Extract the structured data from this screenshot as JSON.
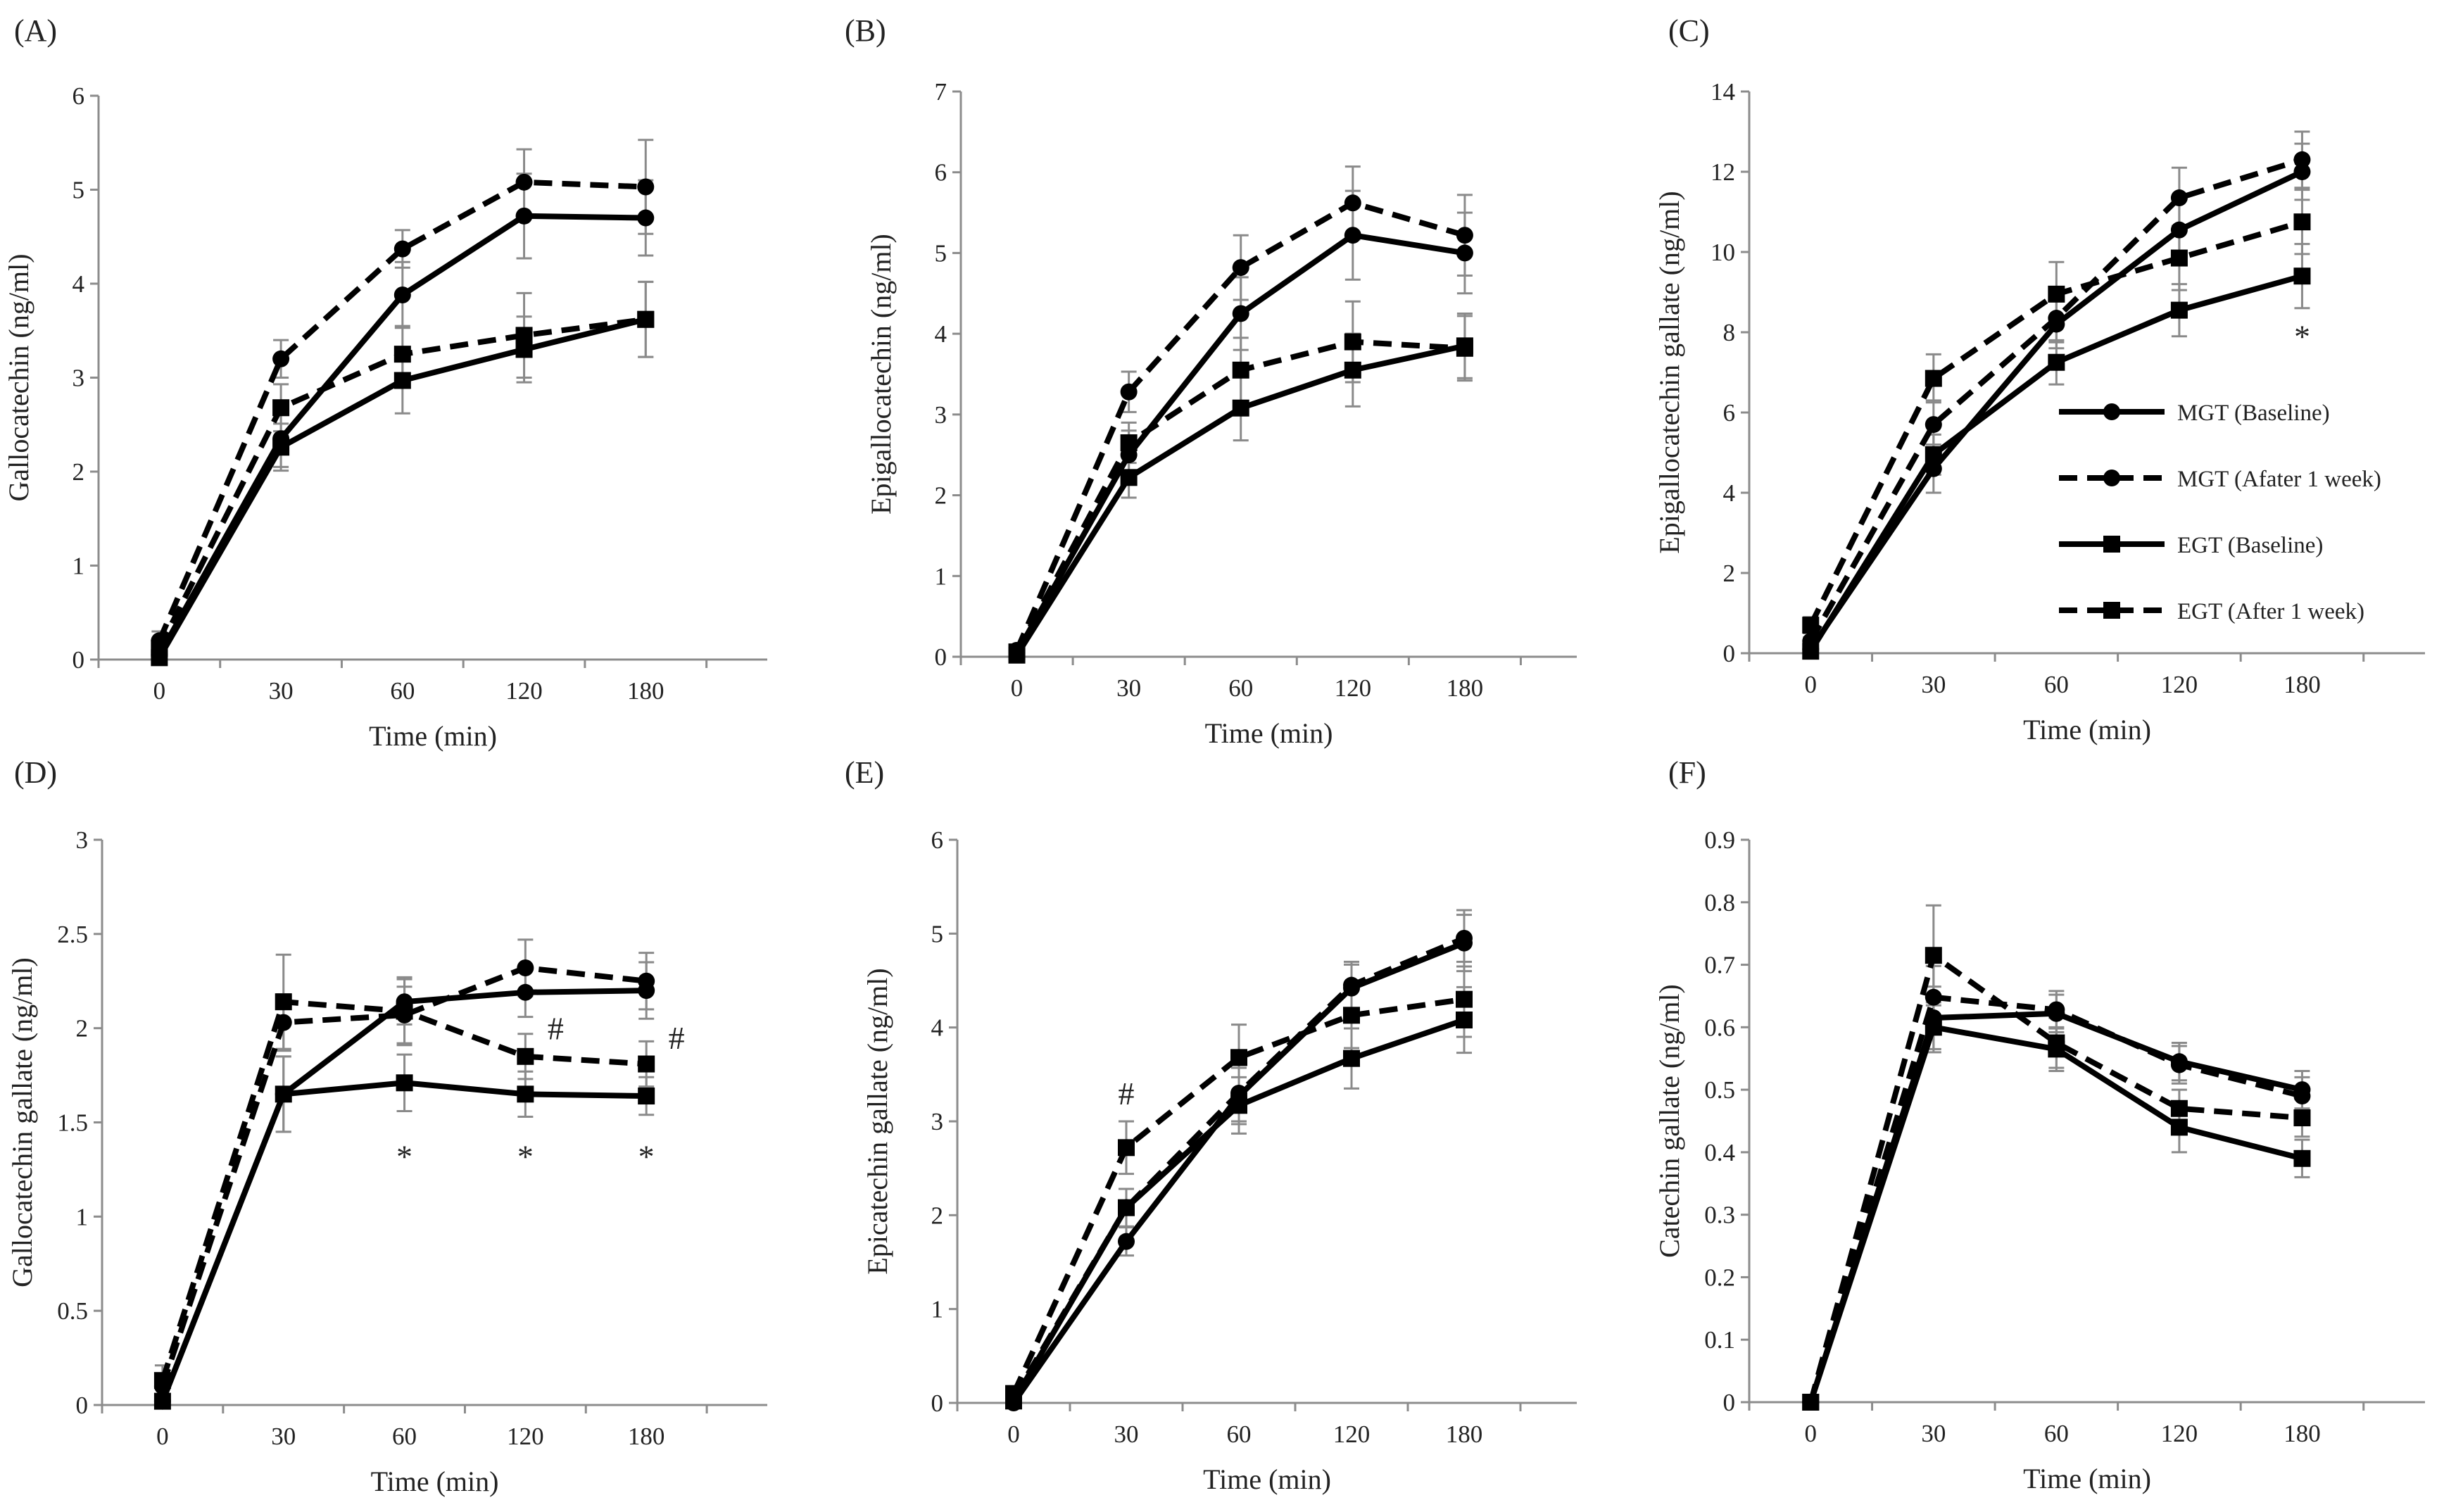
{
  "chart_data": [
    {
      "panel": "(A)",
      "type": "line",
      "xlabel": "Time (min)",
      "ylabel": "Gallocatechin (ng/ml)",
      "ylim": [
        0,
        6
      ],
      "yticks": [
        "0",
        "1",
        "2",
        "3",
        "4",
        "5",
        "6"
      ],
      "categories": [
        "0",
        "30",
        "60",
        "120",
        "180"
      ],
      "series": [
        {
          "key": "mgt_base",
          "values": [
            0.05,
            2.35,
            3.88,
            4.72,
            4.7
          ],
          "errors": [
            0.05,
            0.3,
            0.35,
            0.45,
            0.4
          ]
        },
        {
          "key": "mgt_week",
          "values": [
            0.2,
            3.2,
            4.37,
            5.08,
            5.03
          ],
          "errors": [
            0.1,
            0.2,
            0.2,
            0.35,
            0.5
          ]
        },
        {
          "key": "egt_base",
          "values": [
            0.02,
            2.26,
            2.97,
            3.3,
            3.62
          ],
          "errors": [
            0.02,
            0.25,
            0.35,
            0.35,
            0.4
          ]
        },
        {
          "key": "egt_week",
          "values": [
            0.12,
            2.68,
            3.25,
            3.45,
            3.62
          ],
          "errors": [
            0.05,
            0.25,
            0.3,
            0.45,
            0.4
          ]
        }
      ],
      "annotations": []
    },
    {
      "panel": "(B)",
      "type": "line",
      "xlabel": "Time (min)",
      "ylabel": "Epigallocatechin (ng/ml)",
      "ylim": [
        0,
        7
      ],
      "yticks": [
        "0",
        "1",
        "2",
        "3",
        "4",
        "5",
        "6",
        "7"
      ],
      "categories": [
        "0",
        "30",
        "60",
        "120",
        "180"
      ],
      "series": [
        {
          "key": "mgt_base",
          "values": [
            0.05,
            2.5,
            4.25,
            5.22,
            5.0
          ],
          "errors": [
            0.03,
            0.3,
            0.45,
            0.55,
            0.5
          ]
        },
        {
          "key": "mgt_week",
          "values": [
            0.08,
            3.28,
            4.82,
            5.62,
            5.22
          ],
          "errors": [
            0.05,
            0.25,
            0.4,
            0.45,
            0.5
          ]
        },
        {
          "key": "egt_base",
          "values": [
            0.02,
            2.22,
            3.08,
            3.55,
            3.85
          ],
          "errors": [
            0.02,
            0.25,
            0.4,
            0.45,
            0.4
          ]
        },
        {
          "key": "egt_week",
          "values": [
            0.06,
            2.65,
            3.55,
            3.9,
            3.82
          ],
          "errors": [
            0.03,
            0.25,
            0.4,
            0.5,
            0.4
          ]
        }
      ],
      "annotations": []
    },
    {
      "panel": "(C)",
      "type": "line",
      "xlabel": "Time (min)",
      "ylabel": "Epigallocatechin gallate (ng/ml)",
      "ylim": [
        0,
        14
      ],
      "yticks": [
        "0",
        "2",
        "4",
        "6",
        "8",
        "10",
        "12",
        "14"
      ],
      "categories": [
        "0",
        "30",
        "60",
        "120",
        "180"
      ],
      "series": [
        {
          "key": "mgt_base",
          "values": [
            0.1,
            4.6,
            8.2,
            10.55,
            12.0
          ],
          "errors": [
            0.05,
            0.6,
            0.6,
            0.75,
            0.7
          ]
        },
        {
          "key": "mgt_week",
          "values": [
            0.3,
            5.7,
            8.35,
            11.35,
            12.3
          ],
          "errors": [
            0.1,
            0.6,
            0.6,
            0.75,
            0.7
          ]
        },
        {
          "key": "egt_base",
          "values": [
            0.05,
            4.95,
            7.25,
            8.55,
            9.4
          ],
          "errors": [
            0.05,
            0.5,
            0.55,
            0.65,
            0.8
          ]
        },
        {
          "key": "egt_week",
          "values": [
            0.7,
            6.85,
            8.95,
            9.85,
            10.75
          ],
          "errors": [
            0.2,
            0.6,
            0.8,
            0.8,
            0.8
          ]
        }
      ],
      "annotations": [
        {
          "category": "180",
          "value": 7.9,
          "text": "*"
        }
      ]
    },
    {
      "panel": "(D)",
      "type": "line",
      "xlabel": "Time (min)",
      "ylabel": "Gallocatechin gallate (ng/ml)",
      "ylim": [
        0,
        3
      ],
      "yticks": [
        "0",
        "0.5",
        "1",
        "1.5",
        "2",
        "2.5",
        "3"
      ],
      "categories": [
        "0",
        "30",
        "60",
        "120",
        "180"
      ],
      "series": [
        {
          "key": "mgt_base",
          "values": [
            0.02,
            1.65,
            2.14,
            2.19,
            2.2
          ],
          "errors": [
            0.02,
            0.2,
            0.12,
            0.13,
            0.15
          ]
        },
        {
          "key": "mgt_week",
          "values": [
            0.1,
            2.03,
            2.07,
            2.32,
            2.25
          ],
          "errors": [
            0.05,
            0.15,
            0.15,
            0.15,
            0.15
          ]
        },
        {
          "key": "egt_base",
          "values": [
            0.02,
            1.65,
            1.71,
            1.65,
            1.64
          ],
          "errors": [
            0.02,
            0.2,
            0.15,
            0.12,
            0.1
          ]
        },
        {
          "key": "egt_week",
          "values": [
            0.13,
            2.14,
            2.09,
            1.85,
            1.81
          ],
          "errors": [
            0.08,
            0.25,
            0.18,
            0.12,
            0.12
          ]
        }
      ],
      "annotations": [
        {
          "category": "60",
          "value": 1.32,
          "text": "*"
        },
        {
          "category": "120",
          "value": 1.32,
          "text": "*"
        },
        {
          "category": "180",
          "value": 1.32,
          "text": "*"
        },
        {
          "category": "120",
          "value": 2.0,
          "text": "#",
          "dx": 0.25
        },
        {
          "category": "180",
          "value": 1.95,
          "text": "#",
          "dx": 0.25
        }
      ]
    },
    {
      "panel": "(E)",
      "type": "line",
      "xlabel": "Time (min)",
      "ylabel": "Epicatechin gallate (ng/ml)",
      "ylim": [
        0,
        6
      ],
      "yticks": [
        "0",
        "1",
        "2",
        "3",
        "4",
        "5",
        "6"
      ],
      "categories": [
        "0",
        "30",
        "60",
        "120",
        "180"
      ],
      "series": [
        {
          "key": "mgt_base",
          "values": [
            0.0,
            1.72,
            3.27,
            4.42,
            4.9
          ],
          "errors": [
            0.02,
            0.15,
            0.3,
            0.25,
            0.3
          ]
        },
        {
          "key": "mgt_week",
          "values": [
            0.05,
            2.08,
            3.3,
            4.45,
            4.95
          ],
          "errors": [
            0.03,
            0.2,
            0.3,
            0.25,
            0.3
          ]
        },
        {
          "key": "egt_base",
          "values": [
            0.02,
            2.08,
            3.17,
            3.67,
            4.08
          ],
          "errors": [
            0.02,
            0.2,
            0.3,
            0.32,
            0.35
          ]
        },
        {
          "key": "egt_week",
          "values": [
            0.1,
            2.72,
            3.68,
            4.13,
            4.3
          ],
          "errors": [
            0.05,
            0.28,
            0.35,
            0.35,
            0.4
          ]
        }
      ],
      "annotations": [
        {
          "category": "30",
          "value": 3.3,
          "text": "#"
        }
      ]
    },
    {
      "panel": "(F)",
      "type": "line",
      "xlabel": "Time (min)",
      "ylabel": "Catechin gallate (ng/ml)",
      "ylim": [
        0,
        0.9
      ],
      "yticks": [
        "0",
        "0.1",
        "0.2",
        "0.3",
        "0.4",
        "0.5",
        "0.6",
        "0.7",
        "0.8",
        "0.9"
      ],
      "categories": [
        "0",
        "30",
        "60",
        "120",
        "180"
      ],
      "series": [
        {
          "key": "mgt_base",
          "values": [
            0.0,
            0.615,
            0.622,
            0.545,
            0.5
          ],
          "errors": [
            0.002,
            0.05,
            0.03,
            0.03,
            0.03
          ]
        },
        {
          "key": "mgt_week",
          "values": [
            0.0,
            0.648,
            0.628,
            0.54,
            0.49
          ],
          "errors": [
            0.002,
            0.05,
            0.03,
            0.03,
            0.03
          ]
        },
        {
          "key": "egt_base",
          "values": [
            0.0,
            0.6,
            0.565,
            0.44,
            0.39
          ],
          "errors": [
            0.002,
            0.04,
            0.035,
            0.04,
            0.03
          ]
        },
        {
          "key": "egt_week",
          "values": [
            0.0,
            0.715,
            0.575,
            0.47,
            0.455
          ],
          "errors": [
            0.002,
            0.08,
            0.04,
            0.03,
            0.03
          ]
        }
      ],
      "annotations": []
    }
  ],
  "legend": {
    "placement": "panel (C) right-center",
    "entries": [
      {
        "key": "mgt_base",
        "label": "MGT (Baseline)",
        "line": "solid",
        "marker": "circle"
      },
      {
        "key": "mgt_week",
        "label": "MGT (Afater 1 week)",
        "line": "dashed",
        "marker": "circle"
      },
      {
        "key": "egt_base",
        "label": "EGT (Baseline)",
        "line": "solid",
        "marker": "square"
      },
      {
        "key": "egt_week",
        "label": "EGT (After 1 week)",
        "line": "dashed",
        "marker": "square"
      }
    ]
  },
  "colors": {
    "series": "#000000",
    "axis": "#8c8c8c",
    "error_bar": "#8a8a8a"
  }
}
